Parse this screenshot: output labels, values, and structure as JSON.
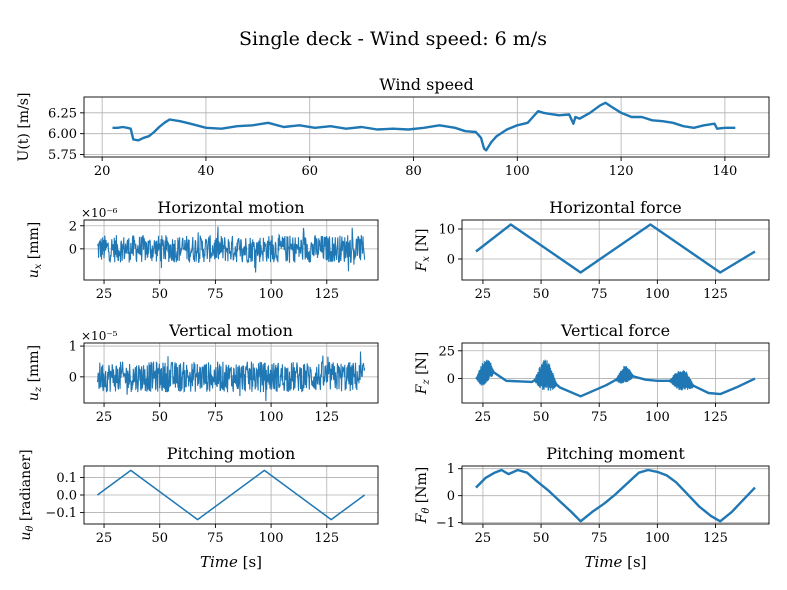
{
  "figure": {
    "suptitle": "Single deck - Wind speed: 6 m/s"
  },
  "colors": {
    "line": "#1f77b4",
    "grid": "#b0b0b0",
    "axis": "#000000"
  },
  "chart_data": [
    {
      "id": "wind",
      "type": "line",
      "title": "Wind speed",
      "ylabel": "U(t) [m/s]",
      "xlabel": "",
      "xlim": [
        16.5,
        148.5
      ],
      "ylim": [
        5.72,
        6.44
      ],
      "xticks": [
        20,
        40,
        60,
        80,
        100,
        120,
        140
      ],
      "yticks": [
        5.75,
        6.0,
        6.25
      ],
      "ytick_labels": [
        "5.75",
        "6.00",
        "6.25"
      ],
      "grid": true,
      "series": [
        {
          "x": [
            22,
            23,
            24,
            24.8,
            25.5,
            26,
            27,
            28,
            29,
            30,
            31,
            32,
            33,
            35,
            37,
            40,
            43,
            46,
            49,
            52,
            55,
            58,
            61,
            64,
            67,
            70,
            73,
            76,
            79,
            82,
            85,
            88,
            90,
            92,
            93,
            93.6,
            94,
            95,
            96,
            98,
            100,
            102,
            103,
            104,
            105,
            106,
            108,
            110,
            110.8,
            111.2,
            112,
            114,
            116,
            117,
            118,
            120,
            122,
            124,
            126,
            128,
            130,
            132,
            134,
            136,
            138,
            138.5,
            140,
            142
          ],
          "y": [
            6.07,
            6.07,
            6.08,
            6.07,
            6.06,
            5.93,
            5.92,
            5.95,
            5.97,
            6.02,
            6.08,
            6.13,
            6.17,
            6.15,
            6.12,
            6.07,
            6.06,
            6.09,
            6.1,
            6.13,
            6.08,
            6.1,
            6.07,
            6.09,
            6.06,
            6.08,
            6.05,
            6.06,
            6.05,
            6.07,
            6.1,
            6.07,
            6.03,
            6.02,
            5.95,
            5.82,
            5.8,
            5.9,
            5.97,
            6.05,
            6.1,
            6.13,
            6.2,
            6.27,
            6.25,
            6.24,
            6.22,
            6.23,
            6.12,
            6.2,
            6.18,
            6.25,
            6.34,
            6.37,
            6.33,
            6.25,
            6.2,
            6.2,
            6.16,
            6.15,
            6.13,
            6.09,
            6.07,
            6.1,
            6.12,
            6.06,
            6.07,
            6.07
          ]
        }
      ]
    },
    {
      "id": "hmotion",
      "type": "line",
      "title": "Horizontal motion",
      "ylabel": "u_x [mm]",
      "xlabel": "",
      "offset": "×10⁻⁶",
      "xlim": [
        16,
        148
      ],
      "ylim": [
        -2.7,
        2.5
      ],
      "xticks": [
        25,
        50,
        75,
        100,
        125
      ],
      "yticks": [
        0,
        2
      ],
      "ytick_labels": [
        "0",
        "2"
      ],
      "grid": true,
      "series": [
        {
          "noise": {
            "x_start": 22,
            "x_end": 142,
            "amplitude": 1.2,
            "peak": 2.1
          }
        }
      ]
    },
    {
      "id": "hforce",
      "type": "line",
      "title": "Horizontal force",
      "ylabel": "F_x [N]",
      "xlabel": "",
      "xlim": [
        16,
        148
      ],
      "ylim": [
        -7,
        13
      ],
      "xticks": [
        25,
        50,
        75,
        100,
        125
      ],
      "yticks": [
        0,
        10
      ],
      "ytick_labels": [
        "0",
        "10"
      ],
      "grid": true,
      "series": [
        {
          "x": [
            22,
            37,
            67,
            97,
            127,
            142
          ],
          "y": [
            2.5,
            11.5,
            -4.5,
            11.5,
            -4.5,
            2.5
          ]
        }
      ]
    },
    {
      "id": "vmotion",
      "type": "line",
      "title": "Vertical motion",
      "ylabel": "u_z [mm]",
      "xlabel": "",
      "offset": "×10⁻⁵",
      "xlim": [
        16,
        148
      ],
      "ylim": [
        -0.85,
        1.1
      ],
      "xticks": [
        25,
        50,
        75,
        100,
        125
      ],
      "yticks": [
        0,
        1
      ],
      "ytick_labels": [
        "0",
        "1"
      ],
      "grid": true,
      "series": [
        {
          "noise": {
            "x_start": 22,
            "x_end": 142,
            "amplitude": 0.5,
            "peak": 0.9
          }
        }
      ]
    },
    {
      "id": "vforce",
      "type": "line",
      "title": "Vertical force",
      "ylabel": "F_z [N]",
      "xlabel": "",
      "xlim": [
        16,
        148
      ],
      "ylim": [
        -22,
        32
      ],
      "xticks": [
        25,
        50,
        75,
        100,
        125
      ],
      "yticks": [
        0,
        25
      ],
      "ytick_labels": [
        "0",
        "25"
      ],
      "grid": true,
      "series": [
        {
          "x": [
            22,
            28,
            35,
            46,
            52,
            58,
            67,
            78,
            84,
            86,
            95,
            100,
            108,
            112,
            115,
            122,
            127,
            134,
            142
          ],
          "y": [
            0,
            8,
            -2,
            -3,
            4,
            -8,
            -16,
            -6,
            1,
            4,
            -1,
            -2,
            -2,
            -1,
            -6,
            -13,
            -14,
            -8,
            0
          ],
          "bursts": [
            [
              22,
              30,
              12
            ],
            [
              47,
              57,
              14
            ],
            [
              82,
              90,
              8
            ],
            [
              105,
              116,
              10
            ]
          ]
        }
      ]
    },
    {
      "id": "pmotion",
      "type": "line",
      "title": "Pitching motion",
      "ylabel": "u_θ [radianer]",
      "xlabel": "Time [s]",
      "xlim": [
        16,
        148
      ],
      "ylim": [
        -0.165,
        0.165
      ],
      "xticks": [
        25,
        50,
        75,
        100,
        125
      ],
      "yticks": [
        -0.1,
        0.0,
        0.1
      ],
      "ytick_labels": [
        "−0.1",
        "0.0",
        "0.1"
      ],
      "grid": true,
      "series": [
        {
          "x": [
            22,
            37,
            67,
            97,
            127,
            142
          ],
          "y": [
            0,
            0.14,
            -0.14,
            0.14,
            -0.14,
            0
          ]
        }
      ]
    },
    {
      "id": "pmoment",
      "type": "line",
      "title": "Pitching moment",
      "ylabel": "F_θ [Nm]",
      "xlabel": "Time [s]",
      "xlim": [
        16,
        148
      ],
      "ylim": [
        -1.05,
        1.1
      ],
      "xticks": [
        25,
        50,
        75,
        100,
        125
      ],
      "yticks": [
        -1,
        0,
        1
      ],
      "ytick_labels": [
        "−1",
        "0",
        "1"
      ],
      "grid": true,
      "series": [
        {
          "x": [
            22,
            26,
            30,
            33,
            36,
            40,
            44,
            48,
            53,
            58,
            63,
            67,
            72,
            77,
            82,
            87,
            92,
            96,
            100,
            104,
            108,
            113,
            118,
            123,
            127,
            132,
            137,
            142
          ],
          "y": [
            0.3,
            0.65,
            0.85,
            0.95,
            0.8,
            0.95,
            0.85,
            0.55,
            0.2,
            -0.2,
            -0.6,
            -0.95,
            -0.6,
            -0.3,
            0.05,
            0.45,
            0.85,
            0.95,
            0.88,
            0.75,
            0.5,
            0.05,
            -0.4,
            -0.75,
            -0.95,
            -0.6,
            -0.15,
            0.3
          ]
        }
      ]
    }
  ]
}
